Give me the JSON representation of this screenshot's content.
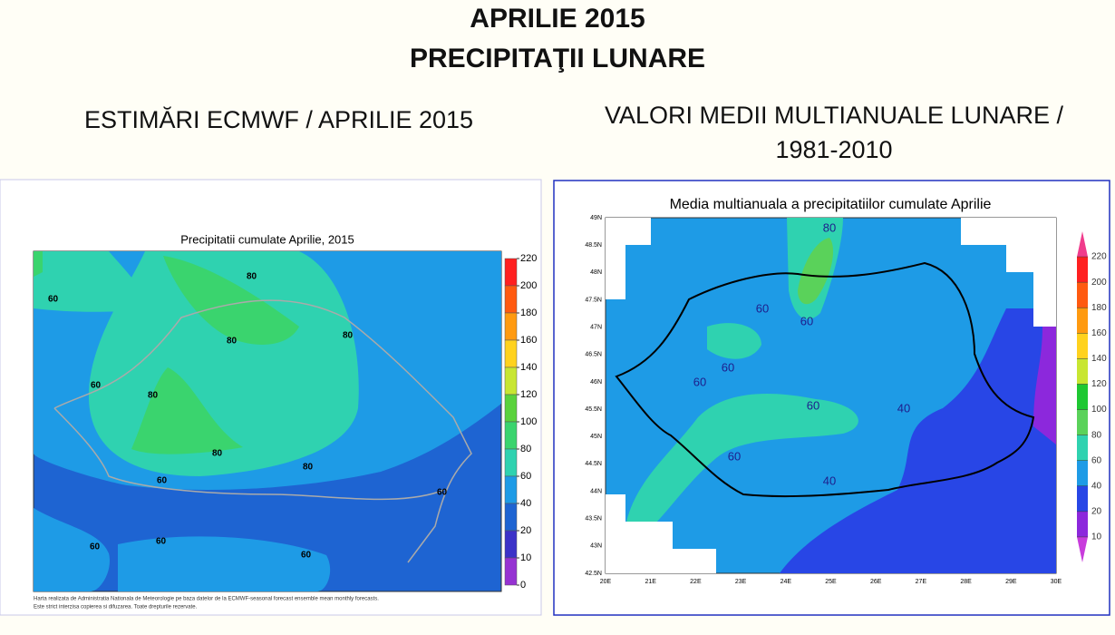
{
  "title": [
    "APRILIE 2015",
    "PRECIPITAŢII LUNARE"
  ],
  "left": {
    "heading": "ESTIMĂRI ECMWF / APRILIE 2015",
    "map_title": "Precipitatii cumulate Aprilie, 2015",
    "colorbar": [
      220,
      200,
      180,
      160,
      140,
      120,
      100,
      80,
      60,
      40,
      20,
      10,
      0
    ],
    "colors": [
      "#ff2020",
      "#ff5a10",
      "#ff9a10",
      "#ffd21e",
      "#c8e632",
      "#5ad23c",
      "#3ad46e",
      "#2fd2b0",
      "#1e9be6",
      "#1e64d2",
      "#3c32c8",
      "#9632d2"
    ],
    "contour_labels": [
      "80",
      "80",
      "80",
      "60",
      "60",
      "80",
      "80",
      "80",
      "60",
      "60",
      "60",
      "60",
      "60"
    ],
    "footnote": [
      "Harta realizata de Administratia Nationala de Meteorologie pe baza datelor de la ECMWF-seasonal forecast ensemble mean monthly forecasts.",
      "Este strict interzisa copierea si difuzarea. Toate drepturile rezervate."
    ]
  },
  "right": {
    "heading": "VALORI MEDII MULTIANUALE LUNARE / 1981-2010",
    "map_title": "Media multianuala a precipitatiilor cumulate Aprilie",
    "colorbar": [
      220,
      200,
      180,
      160,
      140,
      120,
      100,
      80,
      60,
      40,
      20,
      10
    ],
    "colors": [
      "#f03c8c",
      "#ff2020",
      "#ff5a10",
      "#ff9a10",
      "#ffd21e",
      "#c8e632",
      "#1ec832",
      "#5ad25a",
      "#2fd2b0",
      "#1e9be6",
      "#2846e6",
      "#8c28dc",
      "#c83cdc"
    ],
    "lat_labels": [
      "49N",
      "48.5N",
      "48N",
      "47.5N",
      "47N",
      "46.5N",
      "46N",
      "45.5N",
      "45N",
      "44.5N",
      "44N",
      "43.5N",
      "43N",
      "42.5N"
    ],
    "lon_labels": [
      "20E",
      "21E",
      "22E",
      "23E",
      "24E",
      "25E",
      "26E",
      "27E",
      "28E",
      "29E",
      "30E"
    ],
    "contour_labels": [
      "80",
      "60",
      "60",
      "60",
      "60",
      "60",
      "40",
      "60",
      "40"
    ]
  }
}
